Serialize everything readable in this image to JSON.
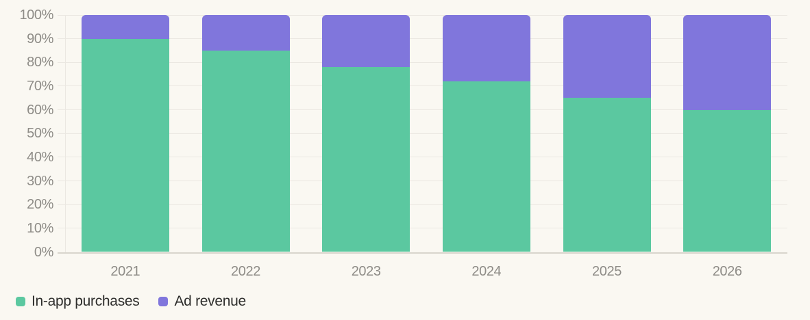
{
  "chart_data": {
    "type": "bar",
    "stacked": true,
    "stacked_unit": "percent",
    "title": "",
    "xlabel": "",
    "ylabel": "",
    "categories": [
      "2021",
      "2022",
      "2023",
      "2024",
      "2025",
      "2026"
    ],
    "series": [
      {
        "name": "In-app purchases",
        "color": "#5bc8a0",
        "values": [
          90,
          85,
          78,
          72,
          65,
          60
        ]
      },
      {
        "name": "Ad revenue",
        "color": "#8076dc",
        "values": [
          10,
          15,
          22,
          28,
          35,
          40
        ]
      }
    ],
    "ylim": [
      0,
      100
    ],
    "y_ticks": [
      "0%",
      "10%",
      "20%",
      "30%",
      "40%",
      "50%",
      "60%",
      "70%",
      "80%",
      "90%",
      "100%"
    ],
    "grid": true,
    "legend_position": "bottom-left"
  },
  "colors": {
    "background": "#faf8f2",
    "gridline": "#ebe8e2",
    "axis_line": "#d8d5cd",
    "tick_label": "#8e8c87",
    "legend_text": "#2e2e2c"
  }
}
